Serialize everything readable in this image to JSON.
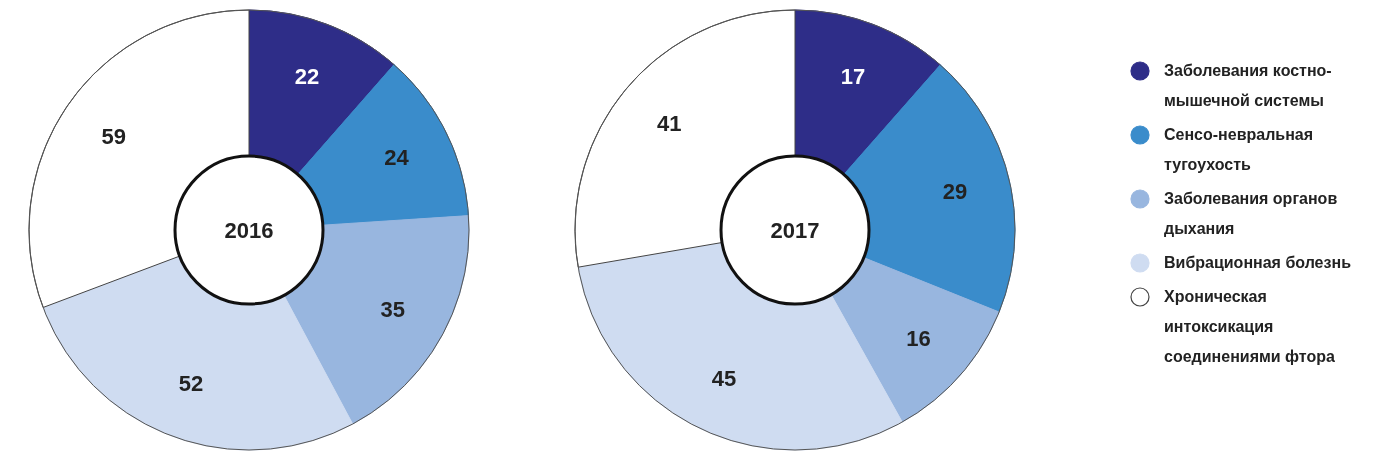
{
  "chart_data": [
    {
      "type": "donut",
      "title": "2016",
      "categories": [
        null,
        null,
        null,
        null,
        null
      ],
      "values": [
        22,
        24,
        35,
        52,
        59
      ],
      "colors": [
        "#2e2d88",
        "#3a8ccb",
        "#98b6df",
        "#cfdcf1",
        "#ffffff"
      ],
      "data_labels": true
    },
    {
      "type": "donut",
      "title": "2017",
      "categories": [
        "Заболевания костно-мышечной системы",
        "Сенсо-невральная тугоухость",
        "Заболевания органов дыхания",
        "Вибрационная болезнь",
        "Хроническая интоксикация соединениями фтора"
      ],
      "values": [
        17,
        29,
        16,
        45,
        41
      ],
      "colors": [
        "#2e2d88",
        "#3a8ccb",
        "#98b6df",
        "#cfdcf1",
        "#ffffff"
      ],
      "data_labels": true,
      "legend": "right"
    }
  ]
}
